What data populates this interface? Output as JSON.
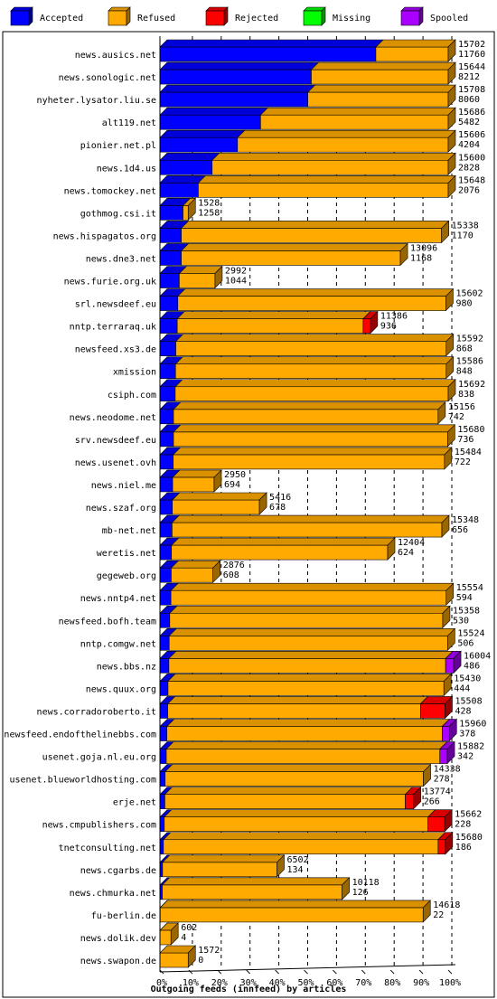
{
  "chart_data": {
    "type": "bar",
    "stacked": true,
    "orientation": "horizontal",
    "xlabel": "Outgoing feeds (innfeed) by articles",
    "xticks": [
      "0%",
      "10%",
      "20%",
      "30%",
      "40%",
      "50%",
      "60%",
      "70%",
      "80%",
      "90%",
      "100%"
    ],
    "xlim": [
      0,
      100
    ],
    "legend_position": "top",
    "legend": [
      {
        "key": "accepted",
        "label": "Accepted",
        "color": "#0000ff"
      },
      {
        "key": "refused",
        "label": "Refused",
        "color": "#ffaa00"
      },
      {
        "key": "rejected",
        "label": "Rejected",
        "color": "#ff0000"
      },
      {
        "key": "missing",
        "label": "Missing",
        "color": "#00ff00"
      },
      {
        "key": "spooled",
        "label": "Spooled",
        "color": "#aa00ff"
      }
    ],
    "rows": [
      {
        "name": "news.ausics.net",
        "total": "15702",
        "accepted_count": "11760",
        "accepted": 74.9,
        "refused": 25.1,
        "rejected": 0,
        "missing": 0,
        "spooled": 0
      },
      {
        "name": "news.sonologic.net",
        "total": "15644",
        "accepted_count": "8212",
        "accepted": 52.5,
        "refused": 47.5,
        "rejected": 0,
        "missing": 0,
        "spooled": 0
      },
      {
        "name": "nyheter.lysator.liu.se",
        "total": "15708",
        "accepted_count": "8060",
        "accepted": 51.3,
        "refused": 48.7,
        "rejected": 0,
        "missing": 0,
        "spooled": 0
      },
      {
        "name": "alt119.net",
        "total": "15686",
        "accepted_count": "5482",
        "accepted": 34.9,
        "refused": 65.1,
        "rejected": 0,
        "missing": 0,
        "spooled": 0
      },
      {
        "name": "pionier.net.pl",
        "total": "15606",
        "accepted_count": "4204",
        "accepted": 26.9,
        "refused": 73.1,
        "rejected": 0,
        "missing": 0,
        "spooled": 0
      },
      {
        "name": "news.1d4.us",
        "total": "15600",
        "accepted_count": "2828",
        "accepted": 18.1,
        "refused": 81.9,
        "rejected": 0,
        "missing": 0,
        "spooled": 0
      },
      {
        "name": "news.tomockey.net",
        "total": "15648",
        "accepted_count": "2076",
        "accepted": 13.3,
        "refused": 86.7,
        "rejected": 0,
        "missing": 0,
        "spooled": 0
      },
      {
        "name": "gothmog.csi.it",
        "total": "1528",
        "accepted_count": "1258",
        "accepted": 8.0,
        "refused": 1.8,
        "rejected": 0,
        "missing": 0,
        "spooled": 0
      },
      {
        "name": "news.hispagatos.org",
        "total": "15338",
        "accepted_count": "1170",
        "accepted": 7.4,
        "refused": 90.3,
        "rejected": 0,
        "missing": 0,
        "spooled": 0
      },
      {
        "name": "news.dne3.net",
        "total": "13096",
        "accepted_count": "1168",
        "accepted": 7.4,
        "refused": 76.0,
        "rejected": 0,
        "missing": 0,
        "spooled": 0
      },
      {
        "name": "news.furie.org.uk",
        "total": "2992",
        "accepted_count": "1044",
        "accepted": 6.7,
        "refused": 12.4,
        "rejected": 0,
        "missing": 0,
        "spooled": 0
      },
      {
        "name": "srl.newsdeef.eu",
        "total": "15602",
        "accepted_count": "980",
        "accepted": 6.2,
        "refused": 93.0,
        "rejected": 0,
        "missing": 0,
        "spooled": 0
      },
      {
        "name": "nntp.terraraq.uk",
        "total": "11386",
        "accepted_count": "936",
        "accepted": 6.0,
        "refused": 64.5,
        "rejected": 2.5,
        "missing": 0,
        "spooled": 0
      },
      {
        "name": "newsfeed.xs3.de",
        "total": "15592",
        "accepted_count": "868",
        "accepted": 5.5,
        "refused": 93.8,
        "rejected": 0,
        "missing": 0,
        "spooled": 0
      },
      {
        "name": "xmission",
        "total": "15586",
        "accepted_count": "848",
        "accepted": 5.4,
        "refused": 93.9,
        "rejected": 0,
        "missing": 0,
        "spooled": 0
      },
      {
        "name": "csiph.com",
        "total": "15692",
        "accepted_count": "838",
        "accepted": 5.3,
        "refused": 94.7,
        "rejected": 0,
        "missing": 0,
        "spooled": 0
      },
      {
        "name": "news.neodome.net",
        "total": "15156",
        "accepted_count": "742",
        "accepted": 4.7,
        "refused": 91.8,
        "rejected": 0,
        "missing": 0,
        "spooled": 0
      },
      {
        "name": "srv.newsdeef.eu",
        "total": "15680",
        "accepted_count": "736",
        "accepted": 4.7,
        "refused": 95.1,
        "rejected": 0,
        "missing": 0,
        "spooled": 0
      },
      {
        "name": "news.usenet.ovh",
        "total": "15484",
        "accepted_count": "722",
        "accepted": 4.6,
        "refused": 94.1,
        "rejected": 0,
        "missing": 0,
        "spooled": 0
      },
      {
        "name": "news.niel.me",
        "total": "2950",
        "accepted_count": "694",
        "accepted": 4.4,
        "refused": 14.4,
        "rejected": 0,
        "missing": 0,
        "spooled": 0
      },
      {
        "name": "news.szaf.org",
        "total": "5416",
        "accepted_count": "678",
        "accepted": 4.3,
        "refused": 30.2,
        "rejected": 0,
        "missing": 0,
        "spooled": 0
      },
      {
        "name": "mb-net.net",
        "total": "15348",
        "accepted_count": "656",
        "accepted": 4.2,
        "refused": 93.6,
        "rejected": 0,
        "missing": 0,
        "spooled": 0
      },
      {
        "name": "weretis.net",
        "total": "12404",
        "accepted_count": "624",
        "accepted": 4.0,
        "refused": 75.0,
        "rejected": 0,
        "missing": 0,
        "spooled": 0
      },
      {
        "name": "gegeweb.org",
        "total": "2876",
        "accepted_count": "608",
        "accepted": 3.9,
        "refused": 14.5,
        "rejected": 0,
        "missing": 0,
        "spooled": 0
      },
      {
        "name": "news.nntp4.net",
        "total": "15554",
        "accepted_count": "594",
        "accepted": 3.8,
        "refused": 95.5,
        "rejected": 0,
        "missing": 0,
        "spooled": 0
      },
      {
        "name": "newsfeed.bofh.team",
        "total": "15358",
        "accepted_count": "530",
        "accepted": 3.4,
        "refused": 94.7,
        "rejected": 0,
        "missing": 0,
        "spooled": 0
      },
      {
        "name": "nntp.comgw.net",
        "total": "15524",
        "accepted_count": "506",
        "accepted": 3.2,
        "refused": 96.6,
        "rejected": 0,
        "missing": 0,
        "spooled": 0
      },
      {
        "name": "news.bbs.nz",
        "total": "16004",
        "accepted_count": "486",
        "accepted": 3.1,
        "refused": 96.0,
        "rejected": 0,
        "missing": 0,
        "spooled": 2.8
      },
      {
        "name": "news.quux.org",
        "total": "15430",
        "accepted_count": "444",
        "accepted": 2.8,
        "refused": 95.7,
        "rejected": 0,
        "missing": 0,
        "spooled": 0
      },
      {
        "name": "news.corradoroberto.it",
        "total": "15508",
        "accepted_count": "428",
        "accepted": 2.7,
        "refused": 87.7,
        "rejected": 8.5,
        "missing": 0,
        "spooled": 0
      },
      {
        "name": "newsfeed.endofthelinebbs.com",
        "total": "15960",
        "accepted_count": "378",
        "accepted": 2.4,
        "refused": 95.5,
        "rejected": 0,
        "missing": 0,
        "spooled": 2.5
      },
      {
        "name": "usenet.goja.nl.eu.org",
        "total": "15882",
        "accepted_count": "342",
        "accepted": 2.2,
        "refused": 94.9,
        "rejected": 0,
        "missing": 0,
        "spooled": 2.6
      },
      {
        "name": "usenet.blueworldhosting.com",
        "total": "14338",
        "accepted_count": "278",
        "accepted": 1.8,
        "refused": 89.6,
        "rejected": 0,
        "missing": 0,
        "spooled": 0
      },
      {
        "name": "erje.net",
        "total": "13774",
        "accepted_count": "266",
        "accepted": 1.7,
        "refused": 83.4,
        "rejected": 2.9,
        "missing": 0,
        "spooled": 0
      },
      {
        "name": "news.cmpublishers.com",
        "total": "15662",
        "accepted_count": "228",
        "accepted": 1.5,
        "refused": 91.5,
        "rejected": 5.8,
        "missing": 0,
        "spooled": 0
      },
      {
        "name": "tnetconsulting.net",
        "total": "15680",
        "accepted_count": "186",
        "accepted": 1.2,
        "refused": 95.3,
        "rejected": 2.5,
        "missing": 0,
        "spooled": 0
      },
      {
        "name": "news.cgarbs.de",
        "total": "6502",
        "accepted_count": "134",
        "accepted": 0.9,
        "refused": 39.7,
        "rejected": 0,
        "missing": 0,
        "spooled": 0
      },
      {
        "name": "news.chmurka.net",
        "total": "10118",
        "accepted_count": "126",
        "accepted": 0.8,
        "refused": 62.4,
        "rejected": 0,
        "missing": 0,
        "spooled": 0
      },
      {
        "name": "fu-berlin.de",
        "total": "14618",
        "accepted_count": "22",
        "accepted": 0.1,
        "refused": 91.2,
        "rejected": 0,
        "missing": 0,
        "spooled": 0
      },
      {
        "name": "news.dolik.dev",
        "total": "602",
        "accepted_count": "4",
        "accepted": 0.03,
        "refused": 3.8,
        "rejected": 0,
        "missing": 0,
        "spooled": 0
      },
      {
        "name": "news.swapon.de",
        "total": "1572",
        "accepted_count": "0",
        "accepted": 0,
        "refused": 9.8,
        "rejected": 0,
        "missing": 0,
        "spooled": 0
      }
    ]
  }
}
